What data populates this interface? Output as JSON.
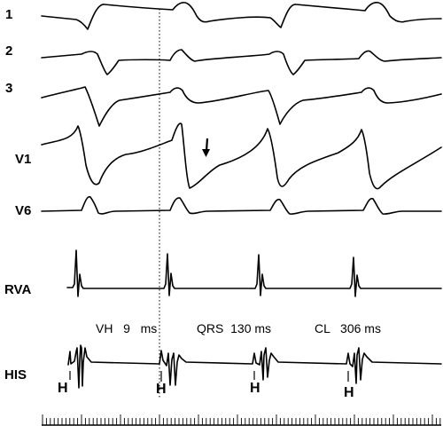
{
  "leads": [
    {
      "id": "lead-1",
      "label": "1"
    },
    {
      "id": "lead-2",
      "label": "2"
    },
    {
      "id": "lead-3",
      "label": "3"
    },
    {
      "id": "lead-v1",
      "label": "V1"
    },
    {
      "id": "lead-v6",
      "label": "V6"
    },
    {
      "id": "lead-rva",
      "label": "RVA"
    },
    {
      "id": "lead-his",
      "label": "HIS"
    }
  ],
  "measurements": {
    "vh": "VH   9   ms",
    "qrs": "QRS  130 ms",
    "cl": "CL   306 ms"
  },
  "his_marker": "H",
  "his_marker_count": 4,
  "colors": {
    "trace": "#000000",
    "background": "#ffffff"
  }
}
